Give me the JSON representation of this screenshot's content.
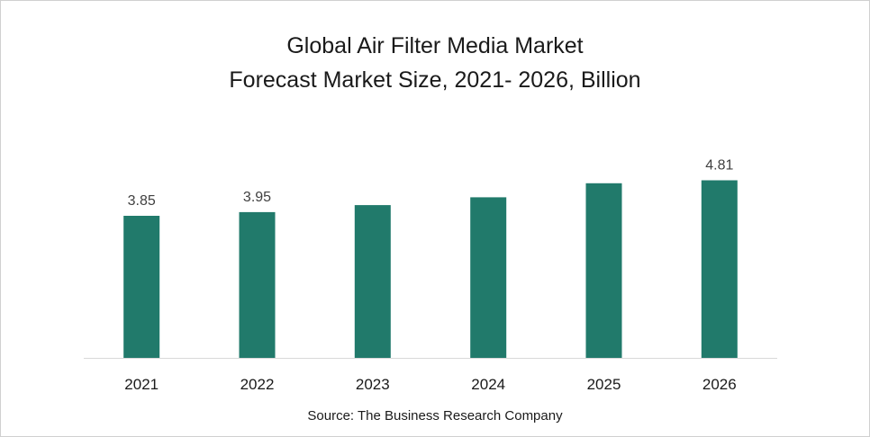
{
  "chart_data": {
    "type": "bar",
    "title": "Global Air Filter Media Market",
    "subtitle": "Forecast Market Size, 2021- 2026, Billion",
    "categories": [
      "2021",
      "2022",
      "2023",
      "2024",
      "2025",
      "2026"
    ],
    "values": [
      3.85,
      3.95,
      4.14,
      4.35,
      4.73,
      4.81
    ],
    "data_labels": [
      "3.85",
      "3.95",
      "",
      "",
      "",
      "4.81"
    ],
    "xlabel": "",
    "ylabel": "",
    "ylim": [
      0,
      5.2
    ],
    "grid": false,
    "legend": "none",
    "bar_color": "#217a6b",
    "source": "Source: The Business Research Company"
  }
}
